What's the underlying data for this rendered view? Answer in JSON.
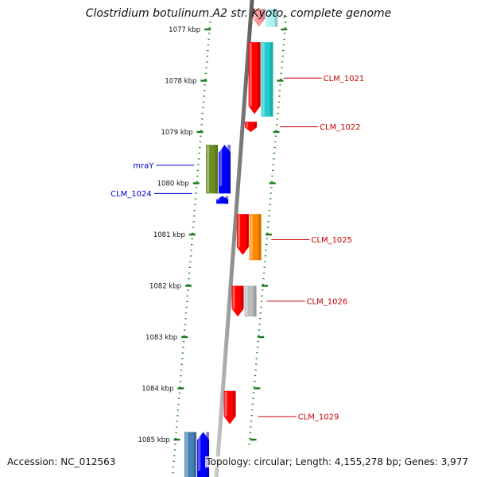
{
  "header": {
    "title": "Clostridium botulinum A2 str. Kyoto, complete genome"
  },
  "footer": {
    "accession": "Accession: NC_012563",
    "summary": "Topology: circular; Length: 4,155,278 bp; Genes: 3,977"
  },
  "colors": {
    "backbone": "#8a8a8a",
    "tick": "#1a7a1a",
    "forward_label": "#c40000",
    "reverse_label": "#0000cc"
  },
  "scale": {
    "unit": "kbp",
    "ticks": [
      {
        "value": 1077,
        "label": "1077 kbp"
      },
      {
        "value": 1078,
        "label": "1078 kbp"
      },
      {
        "value": 1079,
        "label": "1079 kbp"
      },
      {
        "value": 1080,
        "label": "1080 kbp"
      },
      {
        "value": 1081,
        "label": "1081 kbp"
      },
      {
        "value": 1082,
        "label": "1082 kbp"
      },
      {
        "value": 1083,
        "label": "1083 kbp"
      },
      {
        "value": 1084,
        "label": "1084 kbp"
      },
      {
        "value": 1085,
        "label": "1085 kbp"
      }
    ]
  },
  "features": [
    {
      "strand": "forward",
      "ring": "outer",
      "start": 1076.6,
      "end": 1076.95,
      "color": "#ff9999",
      "arrow": true
    },
    {
      "strand": "forward",
      "ring": "inner",
      "start": 1076.6,
      "end": 1076.95,
      "color": "#a8f0f0",
      "arrow": false
    },
    {
      "strand": "forward",
      "ring": "outer",
      "start": 1077.25,
      "end": 1078.65,
      "color": "#ff0000",
      "arrow": true
    },
    {
      "strand": "forward",
      "ring": "inner",
      "start": 1077.25,
      "end": 1078.7,
      "color": "#22cccc",
      "arrow": false
    },
    {
      "strand": "forward",
      "ring": "outer",
      "start": 1078.8,
      "end": 1079.0,
      "color": "#ff0000",
      "arrow": true
    },
    {
      "strand": "reverse",
      "ring": "outer",
      "start": 1079.25,
      "end": 1080.2,
      "color": "#6b8e23",
      "arrow": false
    },
    {
      "strand": "reverse",
      "ring": "inner",
      "start": 1079.25,
      "end": 1080.2,
      "color": "#0000ff",
      "arrow": true
    },
    {
      "strand": "reverse",
      "ring": "inner",
      "start": 1080.25,
      "end": 1080.4,
      "color": "#0000ff",
      "arrow": true
    },
    {
      "strand": "forward",
      "ring": "outer",
      "start": 1080.6,
      "end": 1081.4,
      "color": "#ff0000",
      "arrow": true
    },
    {
      "strand": "forward",
      "ring": "inner",
      "start": 1080.6,
      "end": 1081.5,
      "color": "#ff8800",
      "arrow": false
    },
    {
      "strand": "forward",
      "ring": "outer",
      "start": 1082.0,
      "end": 1082.6,
      "color": "#ff0000",
      "arrow": true
    },
    {
      "strand": "forward",
      "ring": "inner",
      "start": 1082.0,
      "end": 1082.6,
      "color": "#bbbbbb",
      "arrow": false
    },
    {
      "strand": "forward",
      "ring": "outer",
      "start": 1084.05,
      "end": 1084.7,
      "color": "#ff0000",
      "arrow": true
    },
    {
      "strand": "reverse",
      "ring": "outer",
      "start": 1084.85,
      "end": 1085.75,
      "color": "#4682b4",
      "arrow": false
    },
    {
      "strand": "reverse",
      "ring": "inner",
      "start": 1084.85,
      "end": 1085.75,
      "color": "#0000ff",
      "arrow": true
    }
  ],
  "labels": [
    {
      "text": "CLM_1021",
      "strand": "forward",
      "position": 1077.95
    },
    {
      "text": "CLM_1022",
      "strand": "forward",
      "position": 1078.9
    },
    {
      "text": "mraY",
      "strand": "reverse",
      "position": 1079.65
    },
    {
      "text": "CLM_1024",
      "strand": "reverse",
      "position": 1080.2
    },
    {
      "text": "CLM_1025",
      "strand": "forward",
      "position": 1081.1
    },
    {
      "text": "CLM_1026",
      "strand": "forward",
      "position": 1082.3
    },
    {
      "text": "CLM_1029",
      "strand": "forward",
      "position": 1084.55
    }
  ]
}
